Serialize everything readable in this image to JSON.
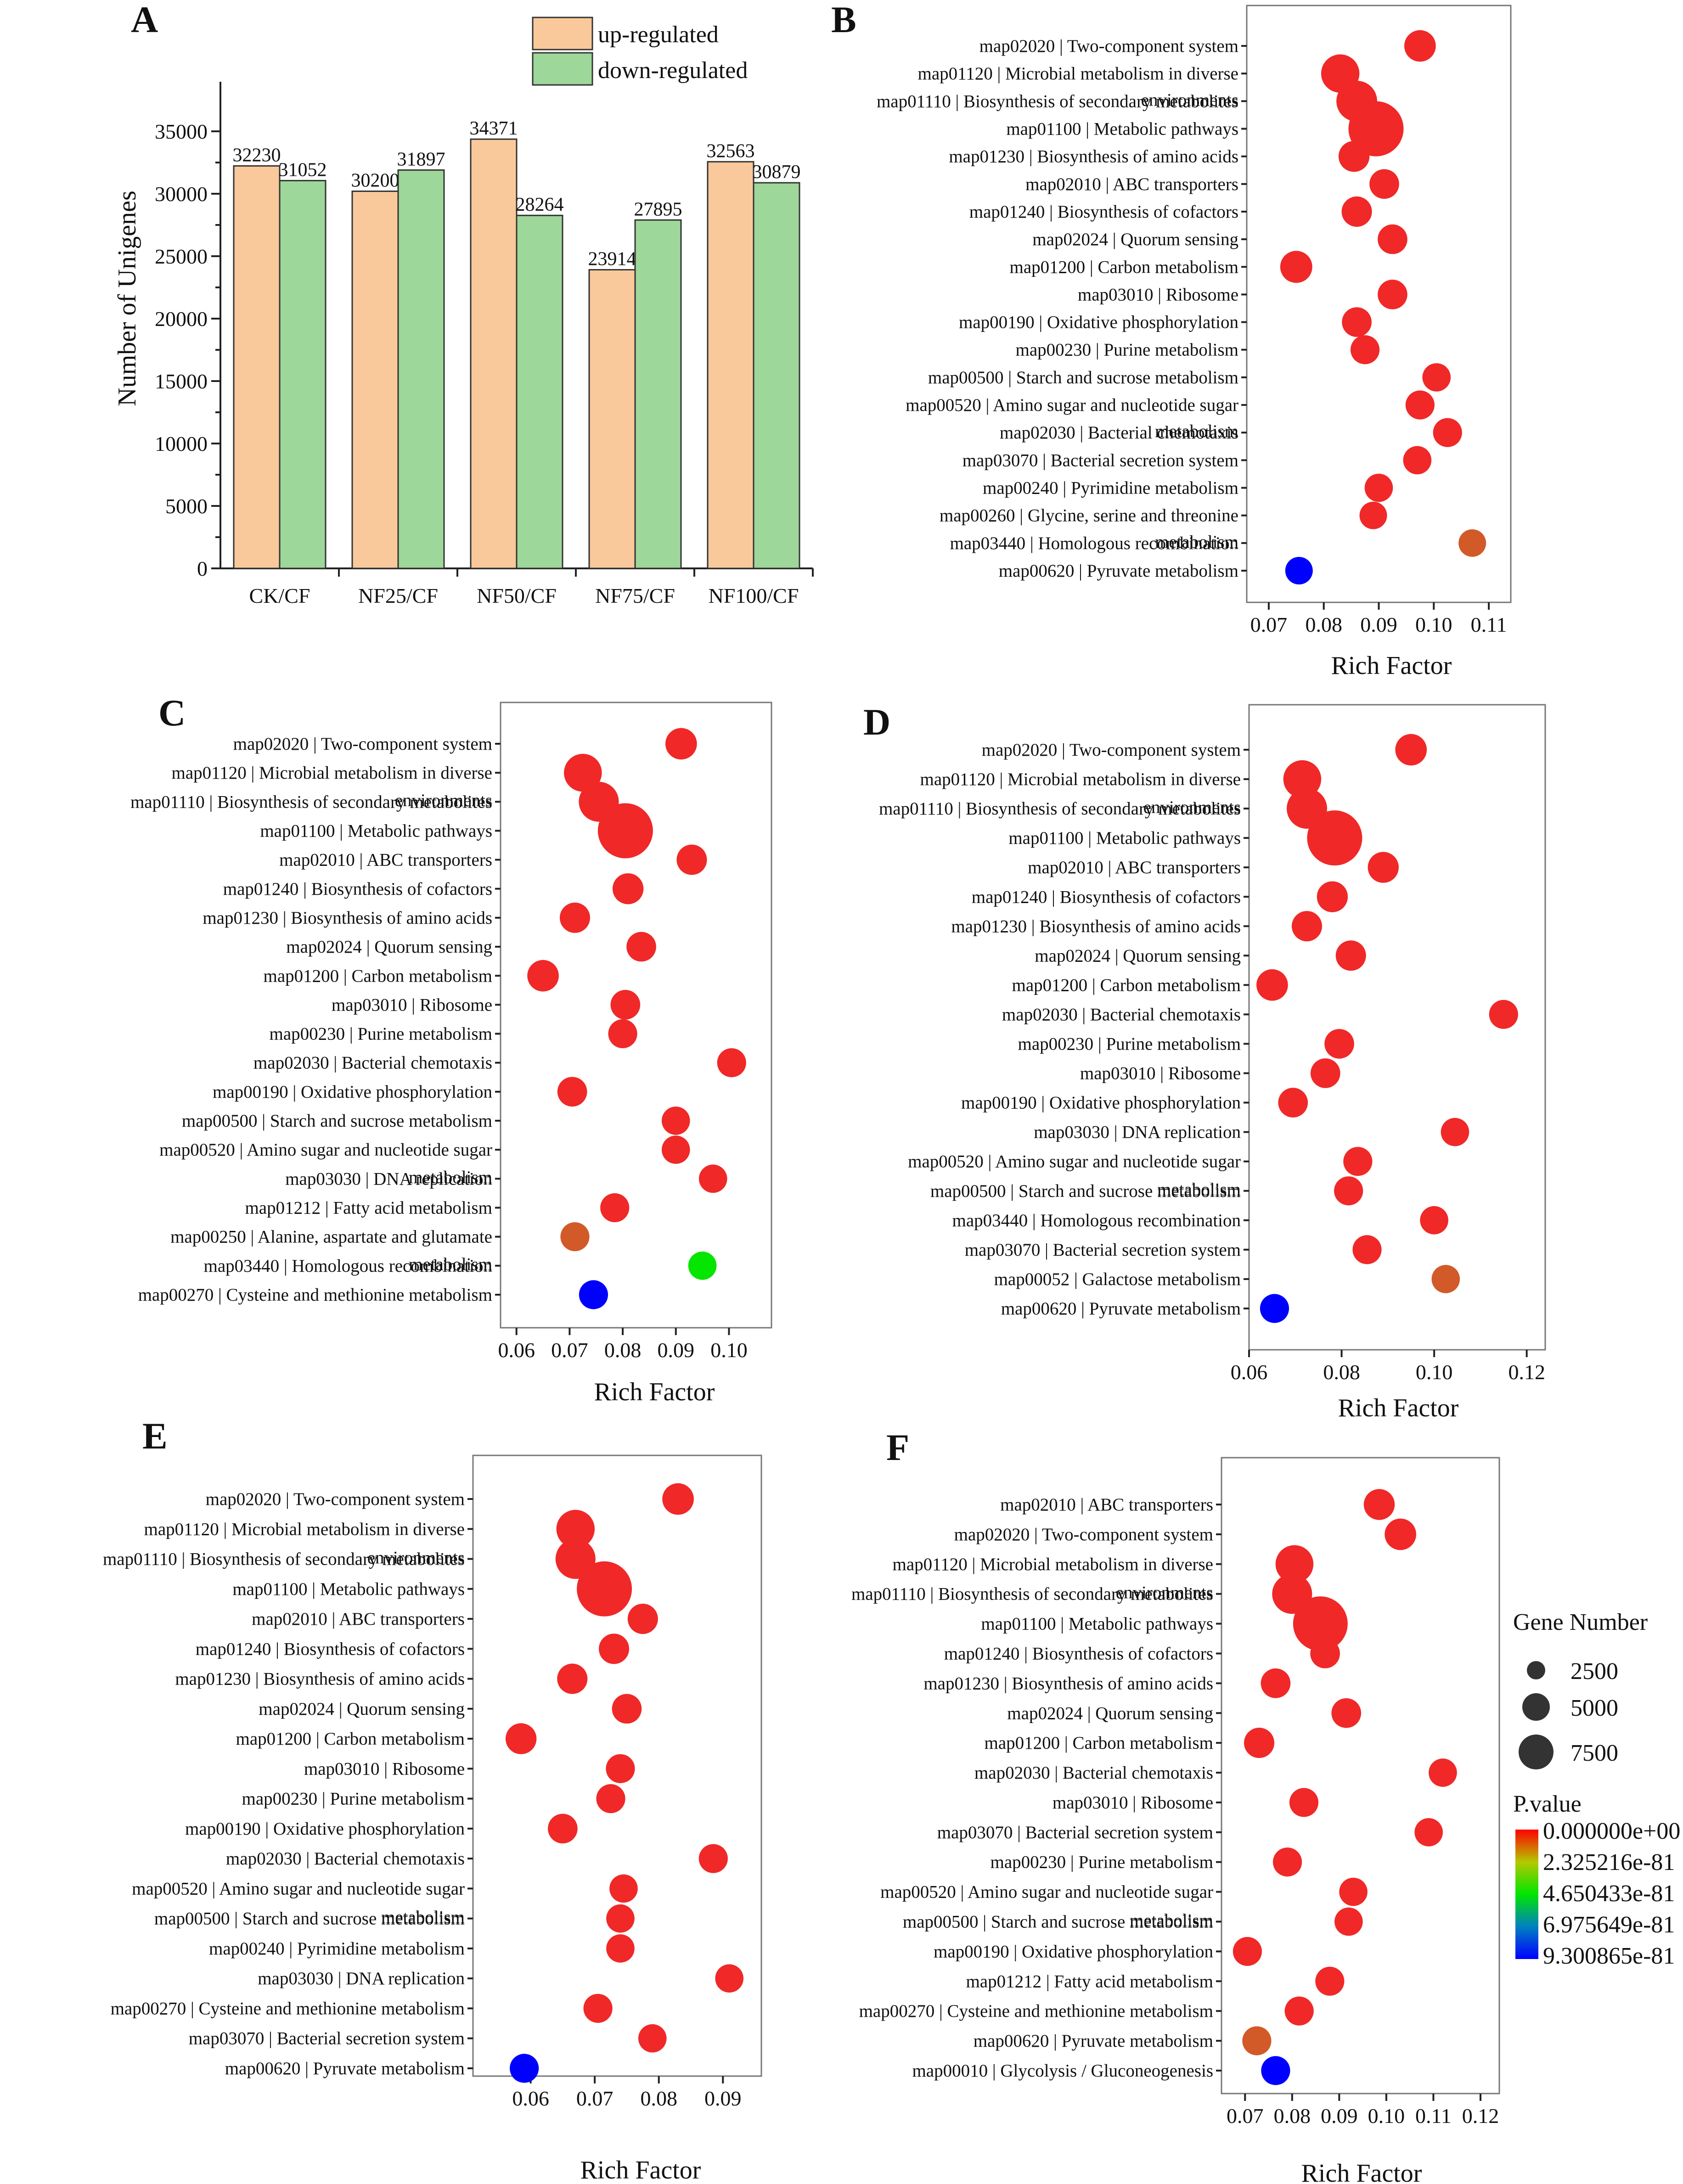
{
  "colors": {
    "up": "#f9c99b",
    "down": "#9ed79a",
    "pval_high": "#ff0000",
    "pval_mid": "#00e600",
    "pval_low": "#0000ff"
  },
  "chart_data": [
    {
      "panel": "A",
      "type": "bar",
      "title": "",
      "xlabel": "",
      "ylabel": "Number of Unigenes",
      "ylim": [
        0,
        37500
      ],
      "yticks": [
        0,
        5000,
        10000,
        15000,
        20000,
        25000,
        30000,
        35000
      ],
      "categories": [
        "CK/CF",
        "NF25/CF",
        "NF50/CF",
        "NF75/CF",
        "NF100/CF"
      ],
      "series": [
        {
          "name": "up-regulated",
          "values": [
            32230,
            30200,
            34371,
            23914,
            32563
          ]
        },
        {
          "name": "down-regulated",
          "values": [
            31052,
            31897,
            28264,
            27895,
            30879
          ]
        }
      ],
      "legend": "top-center"
    },
    {
      "panel": "B",
      "type": "scatter",
      "xlabel": "Rich Factor",
      "xlim": [
        0.066,
        0.114
      ],
      "xticks": [
        0.07,
        0.08,
        0.09,
        0.1,
        0.11
      ],
      "xticklabels": [
        "0.07",
        "0.08",
        "0.09",
        "0.10",
        "0.11"
      ],
      "terms": [
        "map02020 | Two-component system",
        "map01120 | Microbial metabolism in diverse environments",
        "map01110 | Biosynthesis of secondary metabolites",
        "map01100 | Metabolic pathways",
        "map01230 | Biosynthesis of amino acids",
        "map02010 | ABC transporters",
        "map01240 | Biosynthesis of cofactors",
        "map02024 | Quorum sensing",
        "map01200 | Carbon metabolism",
        "map03010 | Ribosome",
        "map00190 | Oxidative phosphorylation",
        "map00230 | Purine metabolism",
        "map00500 | Starch and sucrose metabolism",
        "map00520 | Amino sugar and nucleotide sugar metabolism",
        "map02030 | Bacterial chemotaxis",
        "map03070 | Bacterial secretion system",
        "map00240 | Pyrimidine metabolism",
        "map00260 | Glycine, serine and threonine metabolism",
        "map03440 | Homologous recombination",
        "map00620 | Pyruvate metabolism"
      ],
      "rich_factor": [
        0.0975,
        0.083,
        0.086,
        0.0895,
        0.0855,
        0.091,
        0.086,
        0.0925,
        0.075,
        0.0925,
        0.086,
        0.0875,
        0.1005,
        0.0975,
        0.1025,
        0.097,
        0.09,
        0.089,
        0.107,
        0.0755
      ],
      "gene_number": [
        1300,
        2300,
        2900,
        7800,
        1200,
        1000,
        1100,
        1000,
        1400,
        1000,
        1000,
        900,
        800,
        900,
        900,
        800,
        800,
        700,
        700,
        700
      ],
      "p_value": [
        0,
        0,
        0,
        0,
        0,
        0,
        0,
        0,
        0,
        0,
        0,
        0,
        0,
        0,
        0,
        0,
        0,
        0,
        1.2e-81,
        9.3e-81
      ]
    },
    {
      "panel": "C",
      "type": "scatter",
      "xlabel": "Rich Factor",
      "xlim": [
        0.057,
        0.108
      ],
      "xticks": [
        0.06,
        0.07,
        0.08,
        0.09,
        0.1
      ],
      "xticklabels": [
        "0.06",
        "0.07",
        "0.08",
        "0.09",
        "0.10"
      ],
      "terms": [
        "map02020 | Two-component system",
        "map01120 | Microbial metabolism in diverse environments",
        "map01110 | Biosynthesis of secondary metabolites",
        "map01100 | Metabolic pathways",
        "map02010 | ABC transporters",
        "map01240 | Biosynthesis of cofactors",
        "map01230 | Biosynthesis of amino acids",
        "map02024 | Quorum sensing",
        "map01200 | Carbon metabolism",
        "map03010 | Ribosome",
        "map00230 | Purine metabolism",
        "map02030 | Bacterial chemotaxis",
        "map00190 | Oxidative phosphorylation",
        "map00500 | Starch and sucrose metabolism",
        "map00520 | Amino sugar and nucleotide sugar metabolism",
        "map03030 | DNA replication",
        "map01212 | Fatty acid metabolism",
        "map00250 | Alanine, aspartate and glutamate metabolism",
        "map03440 | Homologous recombination",
        "map00270 | Cysteine and methionine metabolism"
      ],
      "rich_factor": [
        0.091,
        0.0725,
        0.0755,
        0.0805,
        0.093,
        0.081,
        0.071,
        0.0835,
        0.065,
        0.0805,
        0.08,
        0.1005,
        0.0705,
        0.09,
        0.09,
        0.097,
        0.0785,
        0.071,
        0.095,
        0.0745
      ],
      "gene_number": [
        1300,
        2200,
        2700,
        7800,
        1100,
        1200,
        1100,
        1000,
        1300,
        1000,
        900,
        900,
        1000,
        800,
        800,
        800,
        900,
        900,
        800,
        900
      ],
      "p_value": [
        0,
        0,
        0,
        0,
        0,
        0,
        0,
        0,
        0,
        0,
        0,
        0,
        0,
        0,
        0,
        0,
        0,
        5e-82,
        4.6e-81,
        9.3e-81
      ]
    },
    {
      "panel": "D",
      "type": "scatter",
      "xlabel": "Rich Factor",
      "xlim": [
        0.06,
        0.124
      ],
      "xticks": [
        0.06,
        0.08,
        0.1,
        0.12
      ],
      "xticklabels": [
        "0.06",
        "0.08",
        "0.10",
        "0.12"
      ],
      "terms": [
        "map02020 | Two-component system",
        "map01120 | Microbial metabolism in diverse environments",
        "map01110 | Biosynthesis of secondary metabolites",
        "map01100 | Metabolic pathways",
        "map02010 | ABC transporters",
        "map01240 | Biosynthesis of cofactors",
        "map01230 | Biosynthesis of amino acids",
        "map02024 | Quorum sensing",
        "map01200 | Carbon metabolism",
        "map02030 | Bacterial chemotaxis",
        "map00230 | Purine metabolism",
        "map03010 | Ribosome",
        "map00190 | Oxidative phosphorylation",
        "map03030 | DNA replication",
        "map00520 | Amino sugar and nucleotide sugar metabolism",
        "map00500 | Starch and sucrose metabolism",
        "map03440 | Homologous recombination",
        "map03070 | Bacterial secretion system",
        "map00052 | Galactose metabolism",
        "map00620 | Pyruvate metabolism"
      ],
      "rich_factor": [
        0.095,
        0.0715,
        0.0725,
        0.0785,
        0.089,
        0.078,
        0.0725,
        0.082,
        0.065,
        0.115,
        0.0795,
        0.0765,
        0.0695,
        0.1045,
        0.0835,
        0.0815,
        0.1,
        0.0855,
        0.1025,
        0.0655
      ],
      "gene_number": [
        1300,
        2200,
        2800,
        7800,
        1200,
        1200,
        1100,
        1100,
        1300,
        900,
        1000,
        1000,
        1000,
        800,
        900,
        900,
        800,
        900,
        800,
        900
      ],
      "p_value": [
        0,
        0,
        0,
        0,
        0,
        0,
        0,
        0,
        0,
        0,
        0,
        0,
        0,
        0,
        0,
        0,
        0,
        0,
        5e-82,
        9.3e-81
      ]
    },
    {
      "panel": "E",
      "type": "scatter",
      "xlabel": "Rich Factor",
      "xlim": [
        0.051,
        0.096
      ],
      "xticks": [
        0.06,
        0.07,
        0.08,
        0.09
      ],
      "xticklabels": [
        "0.06",
        "0.07",
        "0.08",
        "0.09"
      ],
      "terms": [
        "map02020 | Two-component system",
        "map01120 | Microbial metabolism in diverse environments",
        "map01110 | Biosynthesis of secondary metabolites",
        "map01100 | Metabolic pathways",
        "map02010 | ABC transporters",
        "map01240 | Biosynthesis of cofactors",
        "map01230 | Biosynthesis of amino acids",
        "map02024 | Quorum sensing",
        "map01200 | Carbon metabolism",
        "map03010 | Ribosome",
        "map00230 | Purine metabolism",
        "map00190 | Oxidative phosphorylation",
        "map02030 | Bacterial chemotaxis",
        "map00520 | Amino sugar and nucleotide sugar metabolism",
        "map00500 | Starch and sucrose metabolism",
        "map00240 | Pyrimidine metabolism",
        "map03030 | DNA replication",
        "map00270 | Cysteine and methionine metabolism",
        "map03070 | Bacterial secretion system",
        "map00620 | Pyruvate metabolism"
      ],
      "rich_factor": [
        0.083,
        0.067,
        0.067,
        0.0715,
        0.0775,
        0.073,
        0.0665,
        0.075,
        0.0585,
        0.074,
        0.0725,
        0.065,
        0.0885,
        0.0745,
        0.074,
        0.074,
        0.091,
        0.0705,
        0.079,
        0.059
      ],
      "gene_number": [
        1300,
        2300,
        2700,
        7800,
        1100,
        1100,
        1100,
        1000,
        1200,
        900,
        900,
        1000,
        900,
        800,
        800,
        800,
        800,
        900,
        800,
        900
      ],
      "p_value": [
        0,
        0,
        0,
        0,
        0,
        0,
        0,
        0,
        0,
        0,
        0,
        0,
        0,
        0,
        0,
        0,
        0,
        0,
        0,
        9.3e-81
      ]
    },
    {
      "panel": "F",
      "type": "scatter",
      "xlabel": "Rich Factor",
      "xlim": [
        0.065,
        0.124
      ],
      "xticks": [
        0.07,
        0.08,
        0.09,
        0.1,
        0.11,
        0.12
      ],
      "xticklabels": [
        "0.07",
        "0.08",
        "0.09",
        "0.10",
        "0.11",
        "0.12"
      ],
      "terms": [
        "map02010 | ABC transporters",
        "map02020 | Two-component system",
        "map01120 | Microbial metabolism in diverse environments",
        "map01110 | Biosynthesis of secondary metabolites",
        "map01100 | Metabolic pathways",
        "map01240 | Biosynthesis of cofactors",
        "map01230 | Biosynthesis of amino acids",
        "map02024 | Quorum sensing",
        "map01200 | Carbon metabolism",
        "map02030 | Bacterial chemotaxis",
        "map03010 | Ribosome",
        "map03070 | Bacterial secretion system",
        "map00230 | Purine metabolism",
        "map00520 | Amino sugar and nucleotide sugar metabolism",
        "map00500 | Starch and sucrose metabolism",
        "map00190 | Oxidative phosphorylation",
        "map01212 | Fatty acid metabolism",
        "map00270 | Cysteine and methionine metabolism",
        "map00620 | Pyruvate metabolism",
        "map00010 | Glycolysis / Gluconeogenesis"
      ],
      "rich_factor": [
        0.0985,
        0.103,
        0.0805,
        0.08,
        0.086,
        0.087,
        0.0765,
        0.0915,
        0.073,
        0.112,
        0.0825,
        0.109,
        0.079,
        0.093,
        0.092,
        0.0705,
        0.088,
        0.0815,
        0.0725,
        0.0765
      ],
      "gene_number": [
        1200,
        1300,
        2200,
        2700,
        7600,
        1000,
        1000,
        1000,
        1100,
        800,
        900,
        800,
        900,
        800,
        800,
        900,
        900,
        900,
        900,
        900
      ],
      "p_value": [
        0,
        0,
        0,
        0,
        0,
        0,
        0,
        0,
        0,
        0,
        0,
        0,
        0,
        0,
        0,
        0,
        0,
        0,
        6e-82,
        9.3e-81
      ]
    }
  ],
  "legend": {
    "gene_number_title": "Gene Number",
    "gene_number_sizes": [
      "2500",
      "5000",
      "7500"
    ],
    "gene_number_values": [
      2500,
      5000,
      7500
    ],
    "pvalue_title": "P.value",
    "pvalue_labels": [
      "0.000000e+00",
      "2.325216e-81",
      "4.650433e-81",
      "6.975649e-81",
      "9.300865e-81"
    ],
    "pvalue_max": 9.300865e-81
  }
}
